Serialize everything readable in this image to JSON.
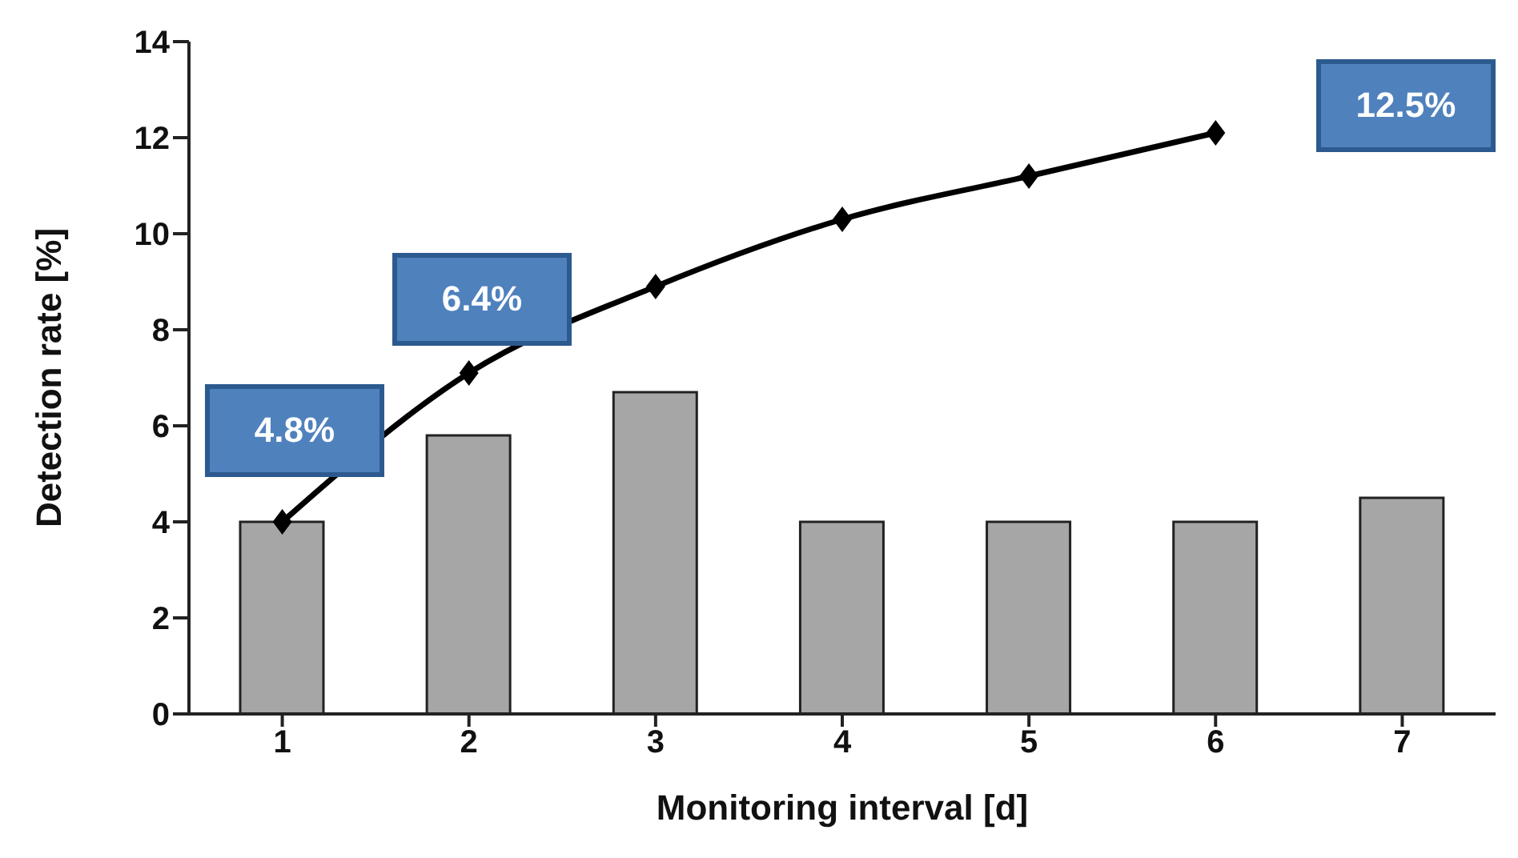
{
  "chart_data": {
    "type": "bar",
    "xlabel": "Monitoring interval [d]",
    "ylabel": "Detection rate [%]",
    "categories": [
      "1",
      "2",
      "3",
      "4",
      "5",
      "6",
      "7"
    ],
    "series": [
      {
        "color": "#a6a6a6",
        "values": [
          4.0,
          5.8,
          6.7,
          4.0,
          4.0,
          4.0,
          4.5
        ]
      },
      {
        "type": "line",
        "color": "#000000",
        "values": [
          4.0,
          7.1,
          8.9,
          10.3,
          11.2,
          12.1,
          null
        ]
      }
    ],
    "ylim": [
      0,
      14
    ],
    "yticks": [
      0,
      2,
      4,
      6,
      8,
      10,
      12,
      14
    ],
    "marker": "diamond",
    "line_style": "solid",
    "annotations": [
      "4.8%",
      "6.4%",
      "12.5%"
    ]
  }
}
